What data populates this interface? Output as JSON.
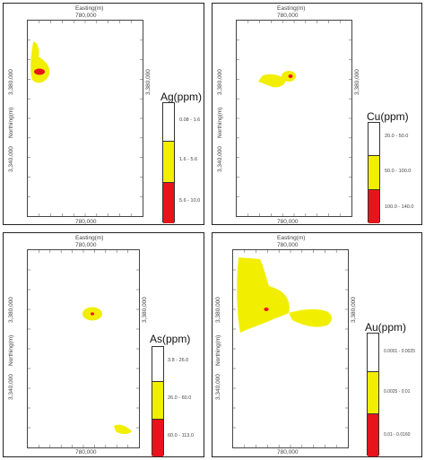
{
  "colors": {
    "low": "#ffffff",
    "mid": "#f2ee00",
    "high": "#e8141b"
  },
  "panels": [
    {
      "id": "ag",
      "top_label": "Easting(m)",
      "top_value": "780,000",
      "bottom_value": "780,000",
      "right_value": "3,380,000",
      "left_values": [
        "3,380,000",
        "3,340,000"
      ],
      "northing_label": "Northing(m)",
      "legend_title": "Ag(ppm)",
      "ranges": [
        "0.08 - 1.6",
        "1.6 - 5.6",
        "5.6 - 10.0"
      ]
    },
    {
      "id": "cu",
      "top_label": "Easting(m)",
      "top_value": "780,000",
      "bottom_value": "780,000",
      "right_value": "3,380,000",
      "left_values": [
        "3,380,000",
        "3,340,000"
      ],
      "northing_label": "Northing(m)",
      "legend_title": "Cu(ppm)",
      "ranges": [
        "20.0 - 50.0",
        "50.0 - 100.0",
        "100.0 - 140.0"
      ]
    },
    {
      "id": "as",
      "top_label": "Easting(m)",
      "top_value": "780,000",
      "bottom_value": "780,000",
      "right_value": "3,380,000",
      "left_values": [
        "3,380,000",
        "3,340,000"
      ],
      "northing_label": "Northing(m)",
      "legend_title": "As(ppm)",
      "ranges": [
        "3.8 - 26.0",
        "26.0 - 60.0",
        "60.0 - 113.0"
      ]
    },
    {
      "id": "au",
      "top_label": "Easting(m)",
      "top_value": "780,000",
      "bottom_value": "780,000",
      "right_value": "3,380,000",
      "left_values": [
        "3,380,000",
        "3,340,000"
      ],
      "northing_label": "Northing(m)",
      "legend_title": "Au(ppm)",
      "ranges": [
        "0.0001 - 0.0025",
        "0.0025 - 0.01",
        "0.01 - 0.0160"
      ]
    }
  ]
}
